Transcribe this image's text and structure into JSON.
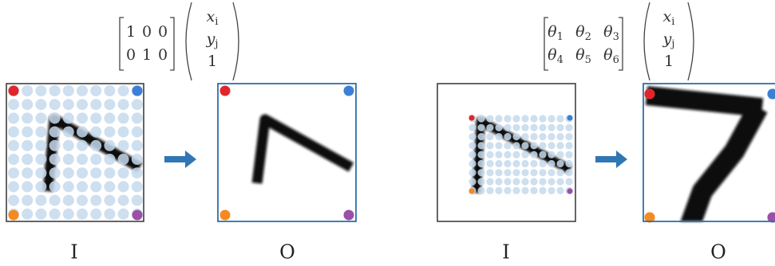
{
  "left": {
    "matrix": [
      [
        1,
        0,
        0
      ],
      [
        0,
        1,
        0
      ]
    ],
    "vector": [
      {
        "base": "x",
        "sub": "i"
      },
      {
        "base": "y",
        "sub": "j"
      },
      1
    ],
    "input_label": "I",
    "output_label": "O"
  },
  "right": {
    "matrix": [
      [
        {
          "base": "θ",
          "sub": "1"
        },
        {
          "base": "θ",
          "sub": "2"
        },
        {
          "base": "θ",
          "sub": "3"
        }
      ],
      [
        {
          "base": "θ",
          "sub": "4"
        },
        {
          "base": "θ",
          "sub": "5"
        },
        {
          "base": "θ",
          "sub": "6"
        }
      ]
    ],
    "vector": [
      {
        "base": "x",
        "sub": "i"
      },
      {
        "base": "y",
        "sub": "j"
      },
      1
    ],
    "input_label": "I",
    "output_label": "O"
  }
}
